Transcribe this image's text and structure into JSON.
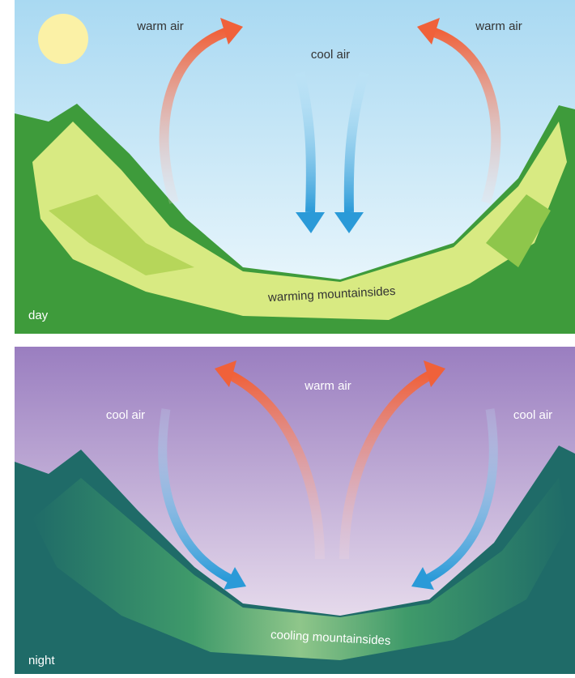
{
  "panels": [
    {
      "caption": "day",
      "labels": [
        "warm air",
        "cool air",
        "warm air",
        "warming mountainsides"
      ]
    },
    {
      "caption": "night",
      "labels": [
        "cool air",
        "warm air",
        "cool air",
        "cooling mountainsides"
      ]
    }
  ]
}
